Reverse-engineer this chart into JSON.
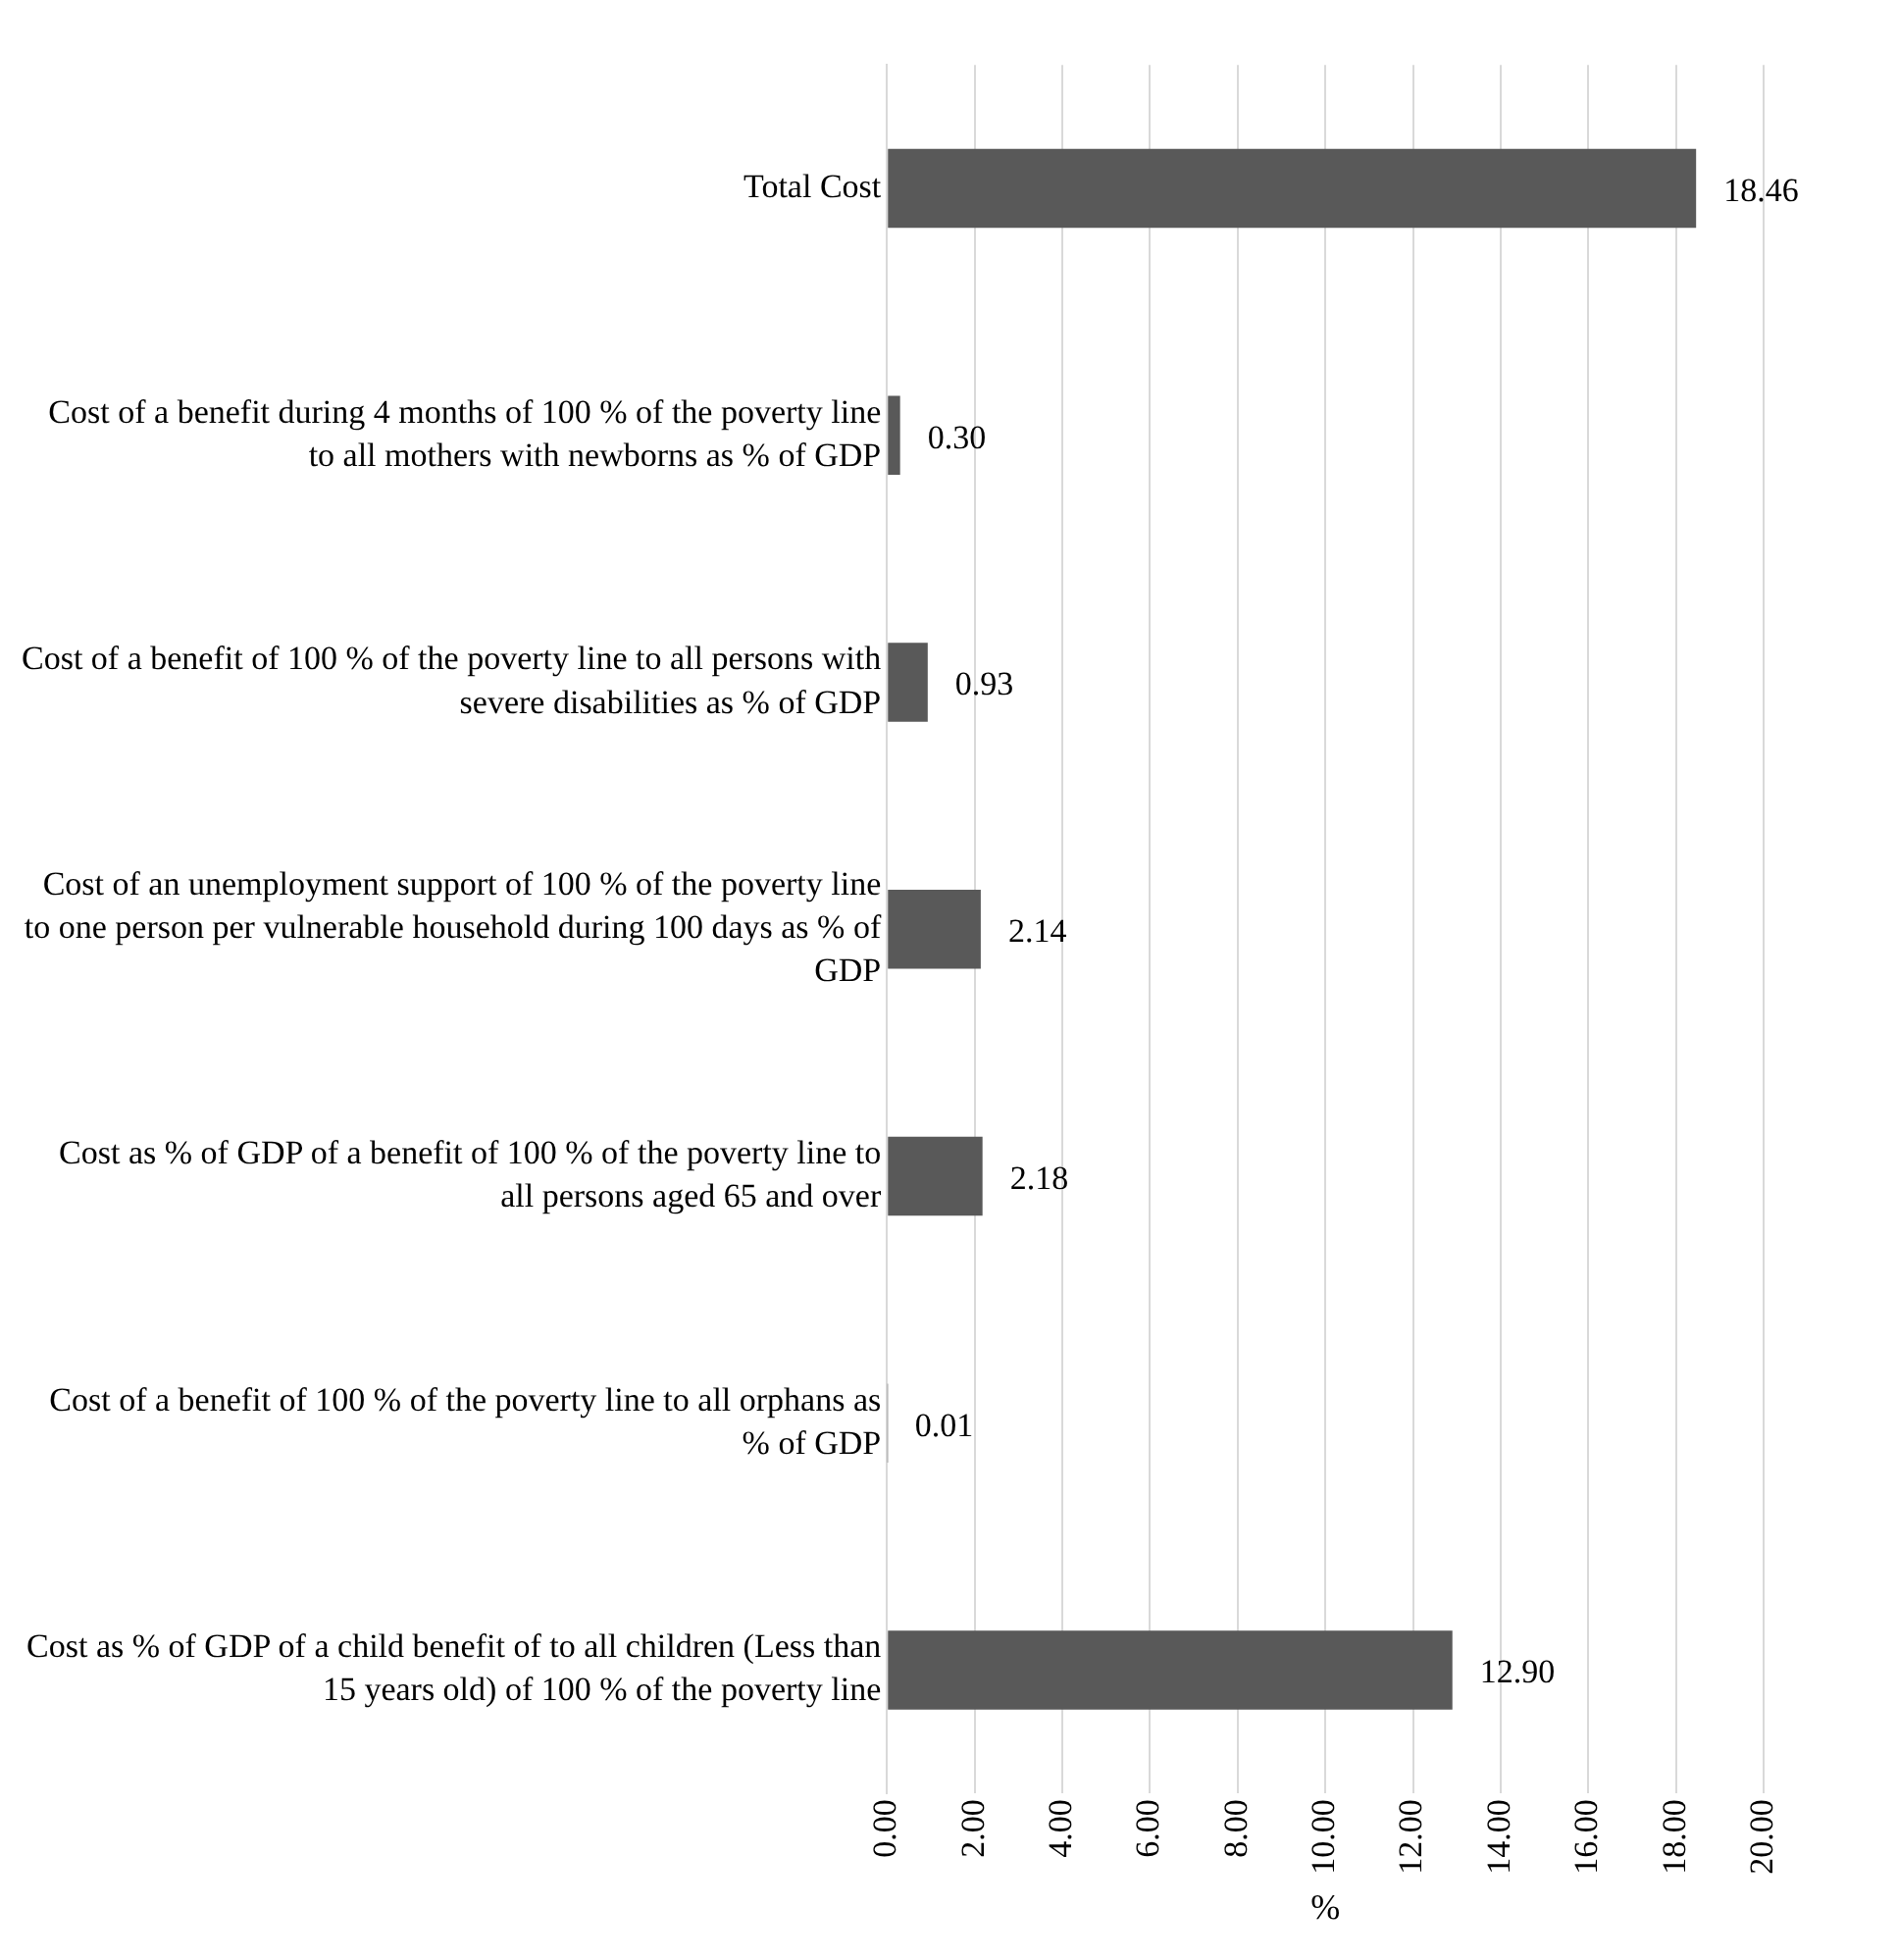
{
  "chart_data": {
    "type": "bar",
    "orientation": "horizontal",
    "categories": [
      "Total Cost",
      "Cost of a benefit during 4 months of 100 % of the poverty line to all mothers with newborns as % of GDP",
      "Cost of a benefit of 100 % of the poverty line to all persons with severe disabilities as % of GDP",
      "Cost of an unemployment support of 100 % of the poverty line to one person per vulnerable household during 100 days as % of GDP",
      "Cost as % of GDP of a benefit of 100 % of the poverty line to all persons aged 65 and over",
      "Cost of a benefit of 100 % of the poverty line to all orphans as % of GDP",
      "Cost as % of GDP of a child benefit of to all children (Less than 15 years old) of 100 % of the poverty line"
    ],
    "values": [
      18.46,
      0.3,
      0.93,
      2.14,
      2.18,
      0.01,
      12.9
    ],
    "value_labels": [
      "18.46",
      "0.30",
      "0.93",
      "2.14",
      "2.18",
      "0.01",
      "12.90"
    ],
    "color": "#595959",
    "xlabel": "%",
    "xlim": [
      0,
      20
    ],
    "xticks": [
      {
        "value": 0,
        "label": "0.00"
      },
      {
        "value": 2,
        "label": "2.00"
      },
      {
        "value": 4,
        "label": "4.00"
      },
      {
        "value": 6,
        "label": "6.00"
      },
      {
        "value": 8,
        "label": "8.00"
      },
      {
        "value": 10,
        "label": "10.00"
      },
      {
        "value": 12,
        "label": "12.00"
      },
      {
        "value": 14,
        "label": "14.00"
      },
      {
        "value": 16,
        "label": "16.00"
      },
      {
        "value": 18,
        "label": "18.00"
      },
      {
        "value": 20,
        "label": "20.00"
      }
    ],
    "grid": "x",
    "legend": false
  }
}
